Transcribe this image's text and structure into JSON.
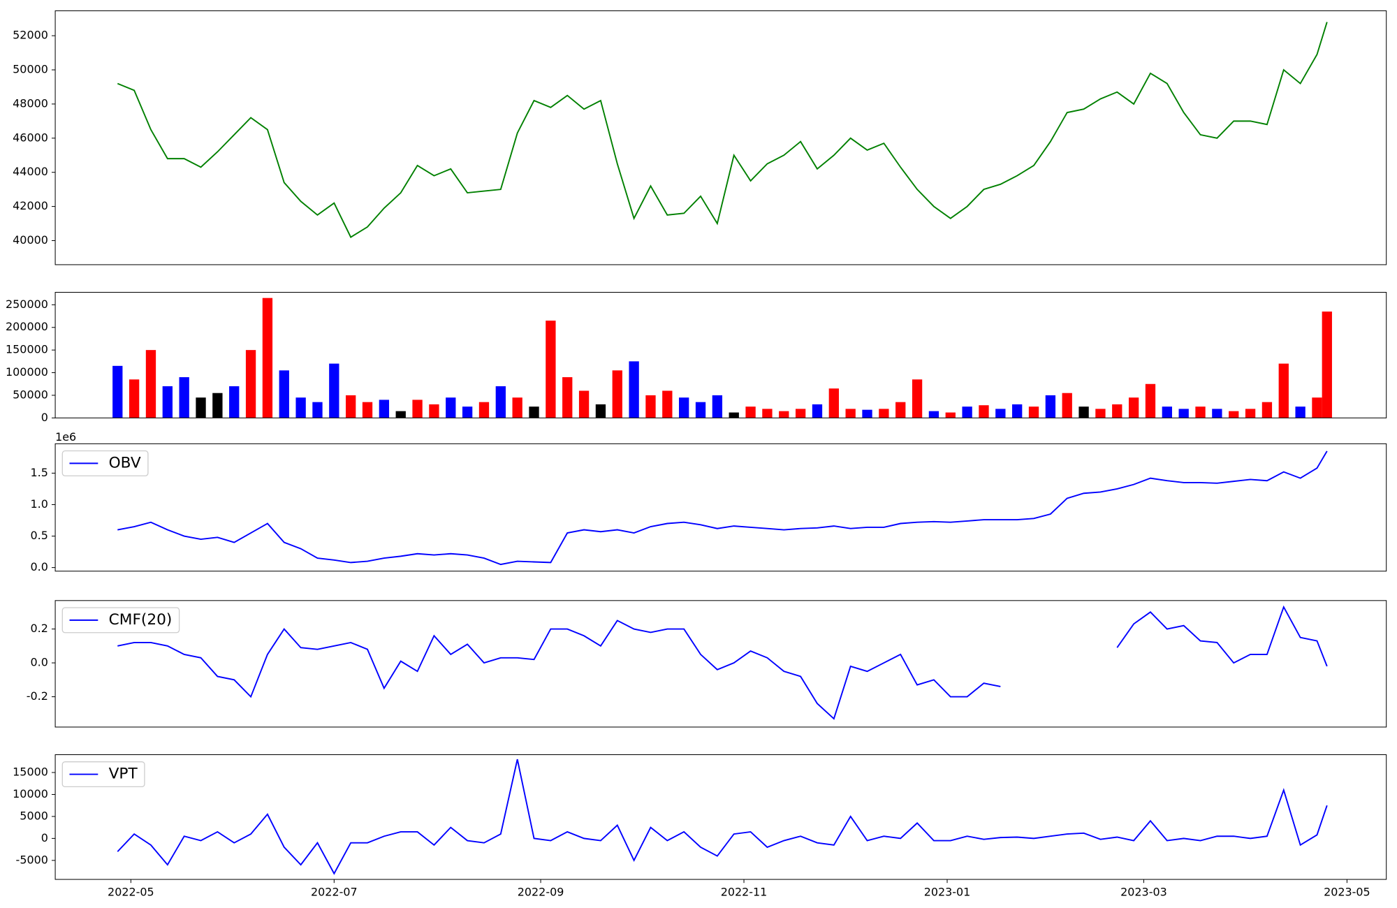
{
  "chart_data": [
    {
      "type": "line",
      "color": "#008000",
      "x": [
        26,
        31,
        36,
        41,
        46,
        51,
        56,
        61,
        66,
        71,
        76,
        81,
        86,
        91,
        96,
        101,
        106,
        111,
        116,
        121,
        126,
        131,
        136,
        141,
        146,
        151,
        156,
        161,
        166,
        171,
        176,
        181,
        186,
        191,
        196,
        201,
        206,
        211,
        216,
        221,
        226,
        231,
        236,
        241,
        246,
        251,
        256,
        261,
        266,
        271,
        276,
        281,
        286,
        291,
        296,
        301,
        306,
        311,
        316,
        321,
        326,
        331,
        336,
        341,
        346,
        351,
        356,
        361,
        366,
        371,
        376,
        381,
        386,
        389
      ],
      "values": [
        49200,
        48800,
        46500,
        44800,
        44800,
        44300,
        45200,
        46200,
        47200,
        46500,
        43400,
        42300,
        41500,
        42200,
        40200,
        40800,
        41900,
        42800,
        44400,
        43800,
        44200,
        42800,
        42900,
        43000,
        46300,
        48200,
        47800,
        48500,
        47700,
        48200,
        44500,
        41300,
        43200,
        41500,
        41600,
        42600,
        41000,
        45000,
        43500,
        44500,
        45000,
        45800,
        44200,
        45000,
        46000,
        45300,
        45700,
        44300,
        43000,
        42000,
        41300,
        42000,
        43000,
        43300,
        43800,
        44400,
        45800,
        47500,
        47700,
        48300,
        48700,
        48000,
        49800,
        49200,
        47500,
        46200,
        46000,
        47000,
        47000,
        46800,
        50000,
        49200,
        50900,
        52800
      ],
      "xlim": [
        7.3,
        406.8
      ],
      "ylim": [
        38590,
        53460
      ],
      "yticks": [
        40000,
        42000,
        44000,
        46000,
        48000,
        50000,
        52000
      ]
    },
    {
      "type": "bar",
      "x": [
        26,
        31,
        36,
        41,
        46,
        51,
        56,
        61,
        66,
        71,
        76,
        81,
        86,
        91,
        96,
        101,
        106,
        111,
        116,
        121,
        126,
        131,
        136,
        141,
        146,
        151,
        156,
        161,
        166,
        171,
        176,
        181,
        186,
        191,
        196,
        201,
        206,
        211,
        216,
        221,
        226,
        231,
        236,
        241,
        246,
        251,
        256,
        261,
        266,
        271,
        276,
        281,
        286,
        291,
        296,
        301,
        306,
        311,
        316,
        321,
        326,
        331,
        336,
        341,
        346,
        351,
        356,
        361,
        366,
        371,
        376,
        381,
        386,
        389
      ],
      "values": [
        115000,
        85000,
        150000,
        70000,
        90000,
        45000,
        55000,
        70000,
        150000,
        265000,
        105000,
        45000,
        35000,
        120000,
        50000,
        35000,
        40000,
        15000,
        40000,
        30000,
        45000,
        25000,
        35000,
        70000,
        45000,
        25000,
        215000,
        90000,
        60000,
        30000,
        105000,
        125000,
        50000,
        60000,
        45000,
        35000,
        50000,
        12000,
        25000,
        20000,
        15000,
        20000,
        30000,
        65000,
        20000,
        18000,
        20000,
        35000,
        85000,
        15000,
        12000,
        25000,
        28000,
        20000,
        30000,
        25000,
        50000,
        55000,
        25000,
        20000,
        30000,
        45000,
        75000,
        25000,
        20000,
        25000,
        20000,
        15000,
        20000,
        35000,
        120000,
        25000,
        45000,
        235000
      ],
      "colors": [
        "#0000ff",
        "#ff0000",
        "#ff0000",
        "#0000ff",
        "#0000ff",
        "#000000",
        "#000000",
        "#0000ff",
        "#ff0000",
        "#ff0000",
        "#0000ff",
        "#0000ff",
        "#0000ff",
        "#0000ff",
        "#ff0000",
        "#ff0000",
        "#0000ff",
        "#000000",
        "#ff0000",
        "#ff0000",
        "#0000ff",
        "#0000ff",
        "#ff0000",
        "#0000ff",
        "#ff0000",
        "#000000",
        "#ff0000",
        "#ff0000",
        "#ff0000",
        "#000000",
        "#ff0000",
        "#0000ff",
        "#ff0000",
        "#ff0000",
        "#0000ff",
        "#0000ff",
        "#0000ff",
        "#000000",
        "#ff0000",
        "#ff0000",
        "#ff0000",
        "#ff0000",
        "#0000ff",
        "#ff0000",
        "#ff0000",
        "#0000ff",
        "#ff0000",
        "#ff0000",
        "#ff0000",
        "#0000ff",
        "#ff0000",
        "#0000ff",
        "#ff0000",
        "#0000ff",
        "#0000ff",
        "#ff0000",
        "#0000ff",
        "#ff0000",
        "#000000",
        "#ff0000",
        "#ff0000",
        "#ff0000",
        "#ff0000",
        "#0000ff",
        "#0000ff",
        "#ff0000",
        "#0000ff",
        "#ff0000",
        "#ff0000",
        "#ff0000",
        "#ff0000",
        "#0000ff",
        "#ff0000",
        "#ff0000"
      ],
      "xlim": [
        7.3,
        406.8
      ],
      "ylim": [
        0,
        277560
      ],
      "yticks": [
        0,
        50000,
        100000,
        150000,
        200000,
        250000
      ]
    },
    {
      "type": "line",
      "offset_label": "1e6",
      "legend": "upper left",
      "x": [
        26,
        31,
        36,
        41,
        46,
        51,
        56,
        61,
        66,
        71,
        76,
        81,
        86,
        91,
        96,
        101,
        106,
        111,
        116,
        121,
        126,
        131,
        136,
        141,
        146,
        151,
        156,
        161,
        166,
        171,
        176,
        181,
        186,
        191,
        196,
        201,
        206,
        211,
        216,
        221,
        226,
        231,
        236,
        241,
        246,
        251,
        256,
        261,
        266,
        271,
        276,
        281,
        286,
        291,
        296,
        301,
        306,
        311,
        316,
        321,
        326,
        331,
        336,
        341,
        346,
        351,
        356,
        361,
        366,
        371,
        376,
        381,
        386,
        389
      ],
      "series": [
        {
          "name": "OBV",
          "color": "#0000ff",
          "values": [
            0.6,
            0.65,
            0.72,
            0.6,
            0.5,
            0.45,
            0.48,
            0.4,
            0.55,
            0.7,
            0.4,
            0.3,
            0.15,
            0.12,
            0.08,
            0.1,
            0.15,
            0.18,
            0.22,
            0.2,
            0.22,
            0.2,
            0.15,
            0.05,
            0.1,
            0.09,
            0.08,
            0.55,
            0.6,
            0.57,
            0.6,
            0.55,
            0.65,
            0.7,
            0.72,
            0.68,
            0.62,
            0.66,
            0.64,
            0.62,
            0.6,
            0.62,
            0.63,
            0.66,
            0.62,
            0.64,
            0.64,
            0.7,
            0.72,
            0.73,
            0.72,
            0.74,
            0.76,
            0.76,
            0.76,
            0.78,
            0.85,
            1.1,
            1.18,
            1.2,
            1.25,
            1.32,
            1.42,
            1.38,
            1.35,
            1.35,
            1.34,
            1.37,
            1.4,
            1.38,
            1.52,
            1.42,
            1.58,
            1.85
          ]
        }
      ],
      "xlim": [
        7.3,
        406.8
      ],
      "ylim": [
        -0.057,
        1.967
      ],
      "yticks": [
        {
          "value": 0,
          "label": "0.0"
        },
        0.5,
        {
          "value": 1,
          "label": "1.0"
        },
        1.5
      ]
    },
    {
      "type": "line",
      "legend": "upper left",
      "x": [
        26,
        31,
        36,
        41,
        46,
        51,
        56,
        61,
        66,
        71,
        76,
        81,
        86,
        91,
        96,
        101,
        106,
        111,
        116,
        121,
        126,
        131,
        136,
        141,
        146,
        151,
        156,
        161,
        166,
        171,
        176,
        181,
        186,
        191,
        196,
        201,
        206,
        211,
        216,
        221,
        226,
        231,
        236,
        241,
        246,
        251,
        256,
        261,
        266,
        271,
        276,
        281,
        286,
        291,
        296,
        301,
        306,
        311,
        316,
        321,
        326,
        331,
        336,
        341,
        346,
        351,
        356,
        361,
        366,
        371,
        376,
        381,
        386,
        389
      ],
      "series": [
        {
          "name": "CMF(20)",
          "color": "#0000ff",
          "values": [
            0.1,
            0.12,
            0.12,
            0.1,
            0.05,
            0.03,
            -0.08,
            -0.1,
            -0.2,
            0.05,
            0.2,
            0.09,
            0.08,
            0.1,
            0.12,
            0.08,
            -0.15,
            0.01,
            -0.05,
            0.16,
            0.05,
            0.11,
            0,
            0.03,
            0.03,
            0.02,
            0.2,
            0.2,
            0.16,
            0.1,
            0.25,
            0.2,
            0.18,
            0.2,
            0.2,
            0.05,
            -0.04,
            0,
            0.07,
            0.03,
            -0.05,
            -0.08,
            -0.24,
            -0.33,
            -0.02,
            -0.05,
            0,
            0.05,
            -0.13,
            -0.1,
            -0.2,
            -0.2,
            -0.12,
            -0.14,
            null,
            null,
            null,
            null,
            null,
            null,
            0.09,
            0.23,
            0.3,
            0.2,
            0.22,
            0.13,
            0.12,
            0,
            0.05,
            0.05,
            0.33,
            0.15,
            0.13,
            -0.02
          ]
        }
      ],
      "xlim": [
        7.3,
        406.8
      ],
      "ylim": [
        -0.379,
        0.368
      ],
      "yticks": [
        -0.2,
        {
          "value": 0,
          "label": "0.0"
        },
        0.2
      ]
    },
    {
      "type": "line",
      "legend": "upper left",
      "x": [
        26,
        31,
        36,
        41,
        46,
        51,
        56,
        61,
        66,
        71,
        76,
        81,
        86,
        91,
        96,
        101,
        106,
        111,
        116,
        121,
        126,
        131,
        136,
        141,
        146,
        151,
        156,
        161,
        166,
        171,
        176,
        181,
        186,
        191,
        196,
        201,
        206,
        211,
        216,
        221,
        226,
        231,
        236,
        241,
        246,
        251,
        256,
        261,
        266,
        271,
        276,
        281,
        286,
        291,
        296,
        301,
        306,
        311,
        316,
        321,
        326,
        331,
        336,
        341,
        346,
        351,
        356,
        361,
        366,
        371,
        376,
        381,
        386,
        389
      ],
      "series": [
        {
          "name": "VPT",
          "color": "#0000ff",
          "values": [
            -3000,
            1000,
            -1500,
            -6000,
            500,
            -500,
            1500,
            -1000,
            1000,
            5500,
            -2000,
            -6000,
            -1000,
            -8000,
            -1000,
            -1000,
            500,
            1500,
            1500,
            -1500,
            2500,
            -500,
            -1000,
            1000,
            18000,
            0,
            -500,
            1500,
            0,
            -500,
            3000,
            -5000,
            2500,
            -500,
            1500,
            -2000,
            -4000,
            1000,
            1500,
            -2000,
            -500,
            500,
            -1000,
            -1500,
            5000,
            -500,
            500,
            0,
            3500,
            -500,
            -500,
            500,
            -200,
            200,
            300,
            0,
            500,
            1000,
            1200,
            -200,
            300,
            -500,
            4000,
            -500,
            0,
            -500,
            500,
            500,
            0,
            500,
            11000,
            -1500,
            800,
            7500
          ]
        }
      ],
      "xlim": [
        7.3,
        406.8
      ],
      "ylim": [
        -9324,
        19054
      ],
      "yticks": [
        -5000,
        0,
        5000,
        10000,
        15000
      ],
      "xticks": [
        {
          "value": 30,
          "label": "2022-05"
        },
        {
          "value": 91,
          "label": "2022-07"
        },
        {
          "value": 153,
          "label": "2022-09"
        },
        {
          "value": 214,
          "label": "2022-11"
        },
        {
          "value": 275,
          "label": "2023-01"
        },
        {
          "value": 334,
          "label": "2023-03"
        },
        {
          "value": 395,
          "label": "2023-05"
        }
      ]
    }
  ]
}
